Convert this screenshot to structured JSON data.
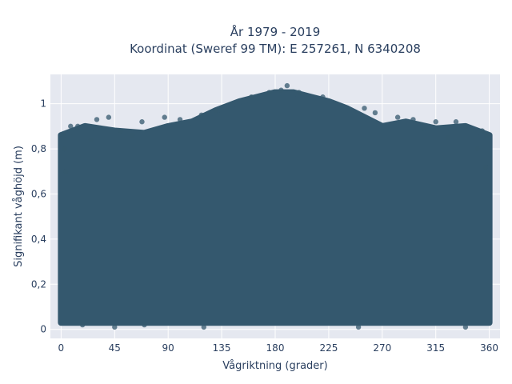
{
  "chart_data": {
    "type": "scatter",
    "title_line1": "År 1979 - 2019",
    "title_line2": "Koordinat (Sweref 99 TM): E 257261, N 6340208",
    "xlabel": "Vågriktning (grader)",
    "ylabel": "Signifikant våghöjd (m)",
    "xlim": [
      -9,
      369
    ],
    "ylim": [
      -0.04,
      1.13
    ],
    "x_ticks": [
      0,
      45,
      90,
      135,
      180,
      225,
      270,
      315,
      360
    ],
    "y_ticks": [
      0,
      0.2,
      0.4,
      0.6,
      0.8,
      1
    ],
    "y_tick_labels": [
      "0",
      "0,2",
      "0,4",
      "0,6",
      "0,8",
      "1"
    ],
    "grid": true,
    "marker_color": "#34586e",
    "plot_bg": "#e5e8f0",
    "upper_envelope": {
      "direction_deg": [
        0,
        20,
        45,
        70,
        90,
        110,
        130,
        150,
        165,
        180,
        195,
        210,
        225,
        240,
        255,
        270,
        290,
        315,
        340,
        360
      ],
      "max_height_m": [
        0.86,
        0.9,
        0.88,
        0.87,
        0.9,
        0.92,
        0.97,
        1.01,
        1.03,
        1.05,
        1.05,
        1.03,
        1.01,
        0.98,
        0.94,
        0.9,
        0.92,
        0.89,
        0.9,
        0.86
      ]
    },
    "points": [
      {
        "x": 190,
        "y": 1.08
      },
      {
        "x": 185,
        "y": 1.06
      },
      {
        "x": 175,
        "y": 1.05
      },
      {
        "x": 200,
        "y": 1.05
      },
      {
        "x": 160,
        "y": 1.03
      },
      {
        "x": 220,
        "y": 1.03
      },
      {
        "x": 255,
        "y": 0.98
      },
      {
        "x": 264,
        "y": 0.96
      },
      {
        "x": 130,
        "y": 0.97
      },
      {
        "x": 118,
        "y": 0.95
      },
      {
        "x": 100,
        "y": 0.93
      },
      {
        "x": 87,
        "y": 0.94
      },
      {
        "x": 68,
        "y": 0.92
      },
      {
        "x": 40,
        "y": 0.94
      },
      {
        "x": 30,
        "y": 0.93
      },
      {
        "x": 14,
        "y": 0.9
      },
      {
        "x": 8,
        "y": 0.9
      },
      {
        "x": 2,
        "y": 0.86
      },
      {
        "x": 283,
        "y": 0.94
      },
      {
        "x": 296,
        "y": 0.93
      },
      {
        "x": 315,
        "y": 0.92
      },
      {
        "x": 332,
        "y": 0.92
      },
      {
        "x": 340,
        "y": 0.9
      },
      {
        "x": 354,
        "y": 0.88
      },
      {
        "x": 358,
        "y": 0.86
      },
      {
        "x": 50,
        "y": 0.88
      },
      {
        "x": 60,
        "y": 0.86
      },
      {
        "x": 305,
        "y": 0.89
      },
      {
        "x": 350,
        "y": 0.8
      },
      {
        "x": 3,
        "y": 0.8
      },
      {
        "x": 4,
        "y": 0.7
      },
      {
        "x": 357,
        "y": 0.72
      },
      {
        "x": 25,
        "y": 0.84
      },
      {
        "x": 325,
        "y": 0.85
      },
      {
        "x": 18,
        "y": 0.02
      },
      {
        "x": 45,
        "y": 0.01
      },
      {
        "x": 120,
        "y": 0.01
      },
      {
        "x": 250,
        "y": 0.01
      },
      {
        "x": 340,
        "y": 0.01
      },
      {
        "x": 70,
        "y": 0.02
      }
    ]
  }
}
